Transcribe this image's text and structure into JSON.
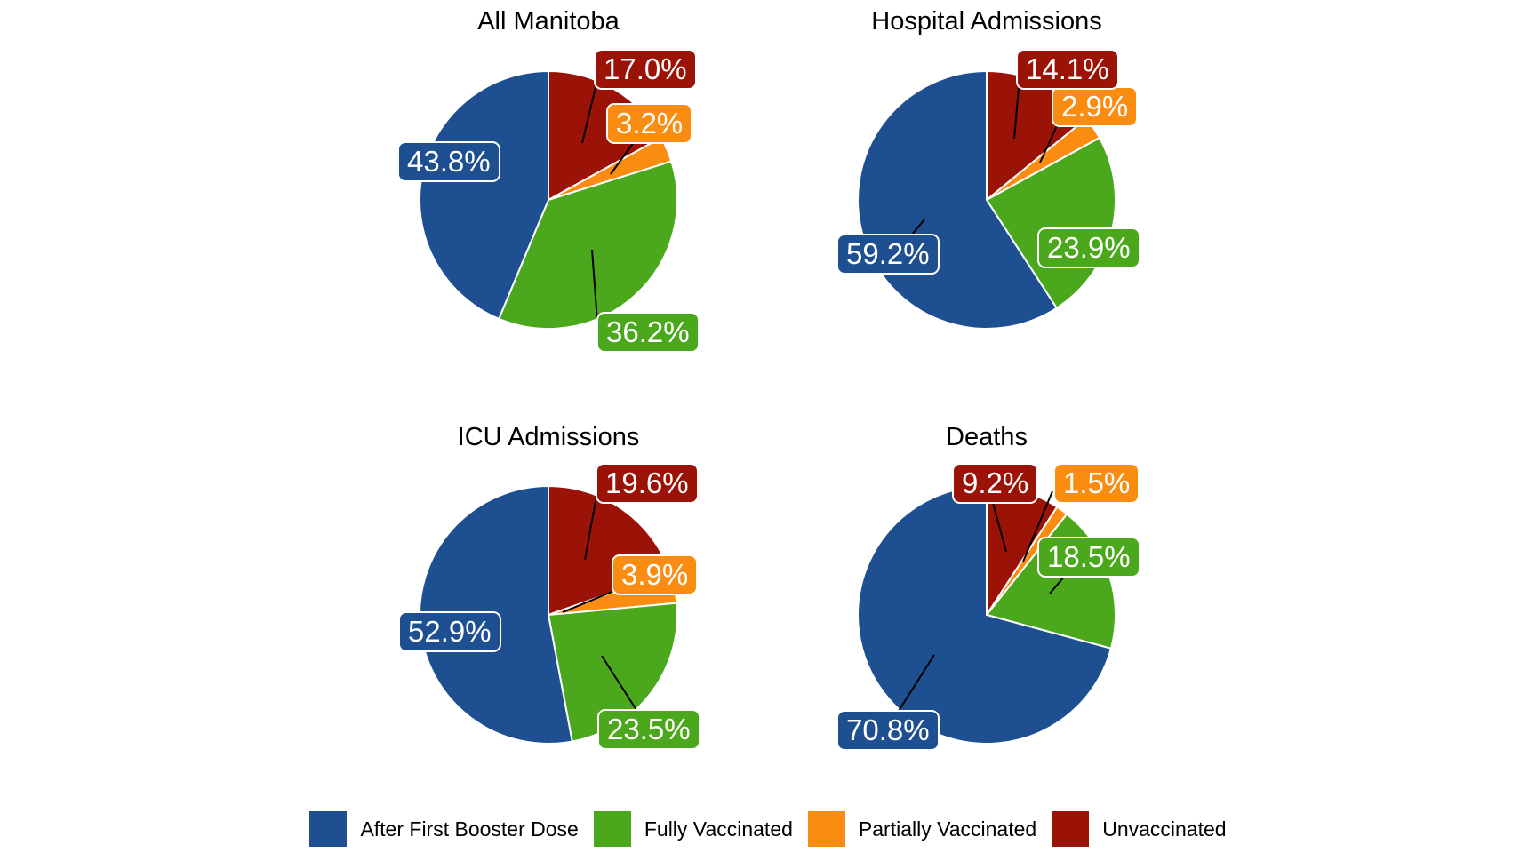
{
  "palette": {
    "after_first_booster_dose": "#1D4F91",
    "fully_vaccinated": "#4BA81C",
    "partially_vaccinated": "#FA8C11",
    "unvaccinated": "#9B1207"
  },
  "chart_data": [
    {
      "type": "pie",
      "title": "All Manitoba",
      "categories": [
        "Unvaccinated",
        "Partially Vaccinated",
        "Fully Vaccinated",
        "After First Booster Dose"
      ],
      "values": [
        17.0,
        3.2,
        36.2,
        43.8
      ],
      "labels": [
        "17.0%",
        "3.2%",
        "36.2%",
        "43.8%"
      ],
      "colors": [
        "#9B1207",
        "#FA8C11",
        "#4BA81C",
        "#1D4F91"
      ],
      "start_angle": "12 o'clock",
      "direction": "clockwise"
    },
    {
      "type": "pie",
      "title": "Hospital Admissions",
      "categories": [
        "Unvaccinated",
        "Partially Vaccinated",
        "Fully Vaccinated",
        "After First Booster Dose"
      ],
      "values": [
        14.1,
        2.9,
        23.9,
        59.2
      ],
      "labels": [
        "14.1%",
        "2.9%",
        "23.9%",
        "59.2%"
      ],
      "colors": [
        "#9B1207",
        "#FA8C11",
        "#4BA81C",
        "#1D4F91"
      ],
      "start_angle": "12 o'clock",
      "direction": "clockwise"
    },
    {
      "type": "pie",
      "title": "ICU Admissions",
      "categories": [
        "Unvaccinated",
        "Partially Vaccinated",
        "Fully Vaccinated",
        "After First Booster Dose"
      ],
      "values": [
        19.6,
        3.9,
        23.5,
        52.9
      ],
      "labels": [
        "19.6%",
        "3.9%",
        "23.5%",
        "52.9%"
      ],
      "colors": [
        "#9B1207",
        "#FA8C11",
        "#4BA81C",
        "#1D4F91"
      ],
      "start_angle": "12 o'clock",
      "direction": "clockwise"
    },
    {
      "type": "pie",
      "title": "Deaths",
      "categories": [
        "Unvaccinated",
        "Partially Vaccinated",
        "Fully Vaccinated",
        "After First Booster Dose"
      ],
      "values": [
        9.2,
        1.5,
        18.5,
        70.8
      ],
      "labels": [
        "9.2%",
        "1.5%",
        "18.5%",
        "70.8%"
      ],
      "colors": [
        "#9B1207",
        "#FA8C11",
        "#4BA81C",
        "#1D4F91"
      ],
      "start_angle": "12 o'clock",
      "direction": "clockwise"
    }
  ],
  "legend": {
    "items": [
      {
        "label": "After First Booster Dose",
        "color": "#1D4F91"
      },
      {
        "label": "Fully Vaccinated",
        "color": "#4BA81C"
      },
      {
        "label": "Partially Vaccinated",
        "color": "#FA8C11"
      },
      {
        "label": "Unvaccinated",
        "color": "#9B1207"
      }
    ]
  }
}
